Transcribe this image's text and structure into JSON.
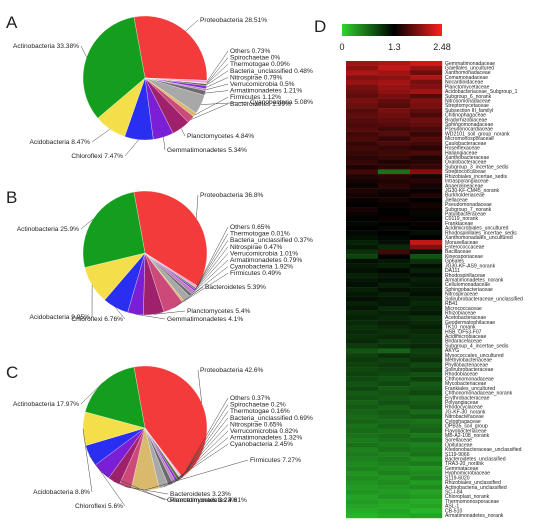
{
  "chart_data": [
    {
      "type": "pie",
      "panel": "A",
      "slices": [
        {
          "label": "Proteobacteria",
          "value": 28.51,
          "display": "Proteobacteria 28.51%",
          "color": "#f43b3b"
        },
        {
          "label": "Others",
          "value": 0.73,
          "display": "Others 0.73%",
          "color": "#ff9fd6"
        },
        {
          "label": "Spirochaetae",
          "value": 0.1,
          "display": "Spirochaetae 0%",
          "color": "#cfd6cf"
        },
        {
          "label": "Thermotogae",
          "value": 0.09,
          "display": "Thermotogae 0.09%",
          "color": "#7a7a7a"
        },
        {
          "label": "Bacteria_unclassified",
          "value": 0.48,
          "display": "Bacteria_unclassified 0.48%",
          "color": "#4f6e30"
        },
        {
          "label": "Nitrospirae",
          "value": 0.79,
          "display": "Nitrospirae 0.79%",
          "color": "#8a2be2"
        },
        {
          "label": "Verrucomicrobia",
          "value": 0.5,
          "display": "Verrucomicrobia 0.5%",
          "color": "#bf7fbf"
        },
        {
          "label": "Armatimonadetes",
          "value": 1.21,
          "display": "Armatimonadetes 1.21%",
          "color": "#6b6b6b"
        },
        {
          "label": "Cyanobacteria",
          "value": 5.08,
          "display": "Cyanobacteria 5.08%",
          "color": "#a8a8a8"
        },
        {
          "label": "Firmicutes",
          "value": 1.12,
          "display": "Firmicutes 1.12%",
          "color": "#d9b96b"
        },
        {
          "label": "Bacteroidetes",
          "value": 1.99,
          "display": "Bacteroidetes 1.99%",
          "color": "#cc4a7a"
        },
        {
          "label": "Planctomycetes",
          "value": 4.84,
          "display": "Planctomycetes 4.84%",
          "color": "#a0216b"
        },
        {
          "label": "Gemmatimonadetes",
          "value": 5.34,
          "display": "Gemmatimonadetes 5.34%",
          "color": "#7a1fd6"
        },
        {
          "label": "Chloroflexi",
          "value": 7.47,
          "display": "Chloroflexi 7.47%",
          "color": "#2a2ef0"
        },
        {
          "label": "Acidobacteria",
          "value": 8.47,
          "display": "Acidobacteria 8.47%",
          "color": "#f4df4a"
        },
        {
          "label": "Actinobacteria",
          "value": 33.38,
          "display": "Actinobacteria 33.38%",
          "color": "#139e1e"
        }
      ]
    },
    {
      "type": "pie",
      "panel": "B",
      "slices": [
        {
          "label": "Proteobacteria",
          "value": 36.8,
          "display": "Proteobacteria 36.8%",
          "color": "#f43b3b"
        },
        {
          "label": "Others",
          "value": 0.65,
          "display": "Others 0.65%",
          "color": "#ff9fd6"
        },
        {
          "label": "Thermotogae",
          "value": 0.01,
          "display": "Thermotogae 0.01%",
          "color": "#7a7a7a"
        },
        {
          "label": "Bacteria_unclassified",
          "value": 0.37,
          "display": "Bacteria_unclassified 0.37%",
          "color": "#4f6e30"
        },
        {
          "label": "Nitrospirae",
          "value": 0.47,
          "display": "Nitrospirae 0.47%",
          "color": "#8a2be2"
        },
        {
          "label": "Verrucomicrobia",
          "value": 1.01,
          "display": "Verrucomicrobia 1.01%",
          "color": "#bf7fbf"
        },
        {
          "label": "Armatimonadetes",
          "value": 0.79,
          "display": "Armatimonadetes 0.79%",
          "color": "#6b6b6b"
        },
        {
          "label": "Cyanobacteria",
          "value": 1.92,
          "display": "Cyanobacteria 1.92%",
          "color": "#a8a8a8"
        },
        {
          "label": "Firmicutes",
          "value": 0.49,
          "display": "Firmicutes 0.49%",
          "color": "#d9b96b"
        },
        {
          "label": "Bacteroidetes",
          "value": 5.39,
          "display": "Bacteroidetes 5.39%",
          "color": "#cc4a7a"
        },
        {
          "label": "Planctomycetes",
          "value": 5.4,
          "display": "Planctomycetes 5.4%",
          "color": "#a0216b"
        },
        {
          "label": "Gemmatimonadetes",
          "value": 4.1,
          "display": "Gemmatimonadetes 4.1%",
          "color": "#7a1fd6"
        },
        {
          "label": "Chloroflexi",
          "value": 6.76,
          "display": "Chloroflexi 6.76%",
          "color": "#2a2ef0"
        },
        {
          "label": "Acidobacteria",
          "value": 9.95,
          "display": "Acidobacteria 9.95%",
          "color": "#f4df4a"
        },
        {
          "label": "Actinobacteria",
          "value": 25.9,
          "display": "Actinobacteria 25.9%",
          "color": "#139e1e"
        }
      ]
    },
    {
      "type": "pie",
      "panel": "C",
      "slices": [
        {
          "label": "Proteobacteria",
          "value": 42.6,
          "display": "Proteobacteria 42.6%",
          "color": "#f43b3b"
        },
        {
          "label": "Others",
          "value": 0.37,
          "display": "Others 0.37%",
          "color": "#ff9fd6"
        },
        {
          "label": "Spirochaetae",
          "value": 0.2,
          "display": "Spirochaetae 0.2%",
          "color": "#cfd6cf"
        },
        {
          "label": "Thermotogae",
          "value": 0.16,
          "display": "Thermotogae 0.16%",
          "color": "#7a7a7a"
        },
        {
          "label": "Bacteria_unclassified",
          "value": 0.69,
          "display": "Bacteria_unclassified 0.69%",
          "color": "#4f6e30"
        },
        {
          "label": "Nitrospirae",
          "value": 0.65,
          "display": "Nitrospirae 0.65%",
          "color": "#8a2be2"
        },
        {
          "label": "Verrucomicrobia",
          "value": 0.82,
          "display": "Verrucomicrobia 0.82%",
          "color": "#bf7fbf"
        },
        {
          "label": "Armatimonadetes",
          "value": 1.32,
          "display": "Armatimonadetes 1.32%",
          "color": "#6b6b6b"
        },
        {
          "label": "Cyanobacteria",
          "value": 2.45,
          "display": "Cyanobacteria 2.45%",
          "color": "#a8a8a8"
        },
        {
          "label": "Firmicutes",
          "value": 7.27,
          "display": "Firmicutes 7.27%",
          "color": "#d9b96b"
        },
        {
          "label": "Bacteroidetes",
          "value": 3.23,
          "display": "Bacteroidetes 3.23%",
          "color": "#cc4a7a"
        },
        {
          "label": "Planctomycetes",
          "value": 3.23,
          "display": "Planctomycetes 3.23%",
          "color": "#a0216b"
        },
        {
          "label": "Gemmatimonadetes",
          "value": 4.81,
          "display": "Gemmatimonadetes 4.81%",
          "color": "#7a1fd6"
        },
        {
          "label": "Chloroflexi",
          "value": 5.6,
          "display": "Chloroflexi 5.6%",
          "color": "#2a2ef0"
        },
        {
          "label": "Acidobacteria",
          "value": 8.8,
          "display": "Acidobacteria 8.8%",
          "color": "#f4df4a"
        },
        {
          "label": "Actinobacteria",
          "value": 17.97,
          "display": "Actinobacteria 17.97%",
          "color": "#139e1e"
        }
      ]
    },
    {
      "type": "heatmap",
      "panel": "D",
      "colorbar": {
        "min": 0,
        "mid": 1.3,
        "max": 2.48,
        "tick_labels": [
          "0",
          "1.3",
          "2.48"
        ],
        "colors": [
          "#2fd42f",
          "#000000",
          "#ff2020"
        ]
      },
      "columns": 3,
      "rows": [
        "Gemmatimonadaceae",
        "Gaiellales_uncultured",
        "Xanthomonadaceae",
        "Comamonadaceae",
        "Nocardioidaceae",
        "Planctomycetaceae",
        "Acidobacteriaceae_Subgroup_1",
        "Subgroup_6_norank",
        "Nitrosomonadaceae",
        "Streptomycetaceae",
        "Subsection III_familyI",
        "Chitinophagaceae",
        "Bradyrhizobiaceae",
        "Sphingomonadaceae",
        "Pseudonocardiaceae",
        "WD2101_soil_group_norank",
        "Micromonosporaceae",
        "Caulobacteraceae",
        "Roseiflexaceae",
        "Haliangiaceae",
        "Xanthobacteraceae",
        "Oxalobacteraceae",
        "Subgroup_3_incertae_sedis",
        "Streptococcaceae",
        "Rhizobiales_incertae_sedis",
        "Intrasporangiaceae",
        "Anaerolineaceae",
        "JG30-KF-CM45_norank",
        "Burkholderiaceae",
        "Jiellaceae",
        "Pseudomonadaceae",
        "Subgroup_7_norank",
        "Patulibacteraceae",
        "C0119_norank",
        "Frankiaceae",
        "Acidimicrobiales_uncultured",
        "Rhodospirillales_incertae_sedis",
        "Xanthomonadales_uncultured",
        "Moraxellaceae",
        "Enterococcaceae",
        "Bacillaceae",
        "Kineosporiaceae",
        "Gp6ales",
        "JG30-KF-AS9_norank",
        "DA111",
        "Rhodospirillaceae",
        "Armatimonadetes_norank",
        "Cellulomonadaceae",
        "Sphingobacteriaceae",
        "Nitrospiraceae",
        "Solirubrobacteraceae_unclassified",
        "RB41",
        "Micrococcaceae",
        "Rhizobiaceae",
        "Acetobacteraceae",
        "Geodermatophilaceae",
        "TK10_norank",
        "HSB_OF53-F07",
        "Acidimicrobiaceae",
        "Blrdaracelaceae",
        "Subgroup_4_incertae_sedis",
        "AKYG",
        "Myxococcales_uncultured",
        "Methylobacteriaceae",
        "Phyllobacteriaceae",
        "Solirubrobacteraceae",
        "Rhodobiaceae",
        "Chthonomonadaceae",
        "Mycobacteriaceae",
        "Frankiales_uncultured",
        "Chthonomonadaceae_norank",
        "Erythrobacteraceae",
        "Polyangiaceae",
        "Rhodocyclaceae",
        "JG-KF-30_norank",
        "Nitrobacteraceae",
        "Cytophagaceae",
        "OPB35_soil_group",
        "Flavobacteriaceae",
        "MB-A2-108_norank",
        "Sorellaceae",
        "Opitutaceae",
        "Ktedonobacteraceae_unclassified",
        "S119-9066",
        "Bacteroidetes_unclassified",
        "TRA3-20_norank",
        "Gemmataceae",
        "Hyphomicrobiaceae",
        "S119-6020",
        "Rhizobiales_unclassified",
        "Actinobacteria_unclassified",
        "SC-I-84",
        "Chloroplast_norank",
        "Thermomonosporaceae",
        "ASL-1",
        "CB-510",
        "Armatimonadetes_norank"
      ],
      "values": [
        [
          2.05,
          2.1,
          2.25
        ],
        [
          1.95,
          2.2,
          2.0
        ],
        [
          2.1,
          2.05,
          1.8
        ],
        [
          1.9,
          1.95,
          2.1
        ],
        [
          2.0,
          2.05,
          1.85
        ],
        [
          1.85,
          2.0,
          1.9
        ],
        [
          1.8,
          1.95,
          2.05
        ],
        [
          1.75,
          1.85,
          1.7
        ],
        [
          1.85,
          1.75,
          1.9
        ],
        [
          1.8,
          1.7,
          1.85
        ],
        [
          1.7,
          1.85,
          1.75
        ],
        [
          1.75,
          1.8,
          1.65
        ],
        [
          1.7,
          1.75,
          1.8
        ],
        [
          1.65,
          1.7,
          1.75
        ],
        [
          1.7,
          1.6,
          1.65
        ],
        [
          1.6,
          1.7,
          1.55
        ],
        [
          1.65,
          1.55,
          1.7
        ],
        [
          1.55,
          1.65,
          1.6
        ],
        [
          1.6,
          1.55,
          1.5
        ],
        [
          1.55,
          1.6,
          1.65
        ],
        [
          1.5,
          1.55,
          1.45
        ],
        [
          1.55,
          1.45,
          1.5
        ],
        [
          1.45,
          1.5,
          1.55
        ],
        [
          1.6,
          0.6,
          1.9
        ],
        [
          1.45,
          1.5,
          1.4
        ],
        [
          1.4,
          1.45,
          1.5
        ],
        [
          1.35,
          1.5,
          1.4
        ],
        [
          1.45,
          1.4,
          1.35
        ],
        [
          1.4,
          1.35,
          1.45
        ],
        [
          1.35,
          1.4,
          1.3
        ],
        [
          1.3,
          1.35,
          1.4
        ],
        [
          1.4,
          1.3,
          1.35
        ],
        [
          1.35,
          1.3,
          1.25
        ],
        [
          1.3,
          1.35,
          1.3
        ],
        [
          1.25,
          1.3,
          1.35
        ],
        [
          1.3,
          1.25,
          1.3
        ],
        [
          1.25,
          1.3,
          1.2
        ],
        [
          1.2,
          1.25,
          1.3
        ],
        [
          1.1,
          1.2,
          2.2
        ],
        [
          1.15,
          1.05,
          1.9
        ],
        [
          1.0,
          1.6,
          1.2
        ],
        [
          0.9,
          1.3,
          0.8
        ],
        [
          1.2,
          1.15,
          1.0
        ],
        [
          1.15,
          1.1,
          1.2
        ],
        [
          1.2,
          1.25,
          1.1
        ],
        [
          1.1,
          1.15,
          1.2
        ],
        [
          1.15,
          1.2,
          1.1
        ],
        [
          1.2,
          1.1,
          1.15
        ],
        [
          1.1,
          1.2,
          1.15
        ],
        [
          1.15,
          1.1,
          1.2
        ],
        [
          1.2,
          1.15,
          1.1
        ],
        [
          1.1,
          1.15,
          1.05
        ],
        [
          1.15,
          1.05,
          1.1
        ],
        [
          1.05,
          1.1,
          1.15
        ],
        [
          1.1,
          1.05,
          1.0
        ],
        [
          1.05,
          1.1,
          1.05
        ],
        [
          1.0,
          1.05,
          1.1
        ],
        [
          1.05,
          1.0,
          1.05
        ],
        [
          1.0,
          1.05,
          1.0
        ],
        [
          1.05,
          0.95,
          1.0
        ],
        [
          0.95,
          1.0,
          1.05
        ],
        [
          0.8,
          0.7,
          0.9
        ],
        [
          0.9,
          1.0,
          0.95
        ],
        [
          0.95,
          0.9,
          1.0
        ],
        [
          0.9,
          0.95,
          0.85
        ],
        [
          0.85,
          0.9,
          0.95
        ],
        [
          0.9,
          0.85,
          0.8
        ],
        [
          0.85,
          0.8,
          0.9
        ],
        [
          0.8,
          0.85,
          0.75
        ],
        [
          0.85,
          0.75,
          0.8
        ],
        [
          0.75,
          0.8,
          0.85
        ],
        [
          0.8,
          0.75,
          0.7
        ],
        [
          0.7,
          0.8,
          0.75
        ],
        [
          0.75,
          0.7,
          0.8
        ],
        [
          0.7,
          0.75,
          0.65
        ],
        [
          0.65,
          0.7,
          0.75
        ],
        [
          0.7,
          0.65,
          0.6
        ],
        [
          0.6,
          0.7,
          0.65
        ],
        [
          0.65,
          0.6,
          0.7
        ],
        [
          0.6,
          0.65,
          0.55
        ],
        [
          0.55,
          0.6,
          0.65
        ],
        [
          0.6,
          0.55,
          0.5
        ],
        [
          0.5,
          0.6,
          0.55
        ],
        [
          0.55,
          0.5,
          0.6
        ],
        [
          0.5,
          0.55,
          0.45
        ],
        [
          0.45,
          0.5,
          0.55
        ],
        [
          0.5,
          0.45,
          0.4
        ],
        [
          0.4,
          0.5,
          0.45
        ],
        [
          0.45,
          0.4,
          0.5
        ],
        [
          0.4,
          0.45,
          0.35
        ],
        [
          0.35,
          0.4,
          0.45
        ],
        [
          0.4,
          0.35,
          0.3
        ],
        [
          0.3,
          0.4,
          0.35
        ],
        [
          0.35,
          0.3,
          0.25
        ],
        [
          0.3,
          0.25,
          0.3
        ],
        [
          0.25,
          0.3,
          0.2
        ],
        [
          0.2,
          0.25,
          0.3
        ]
      ]
    }
  ]
}
